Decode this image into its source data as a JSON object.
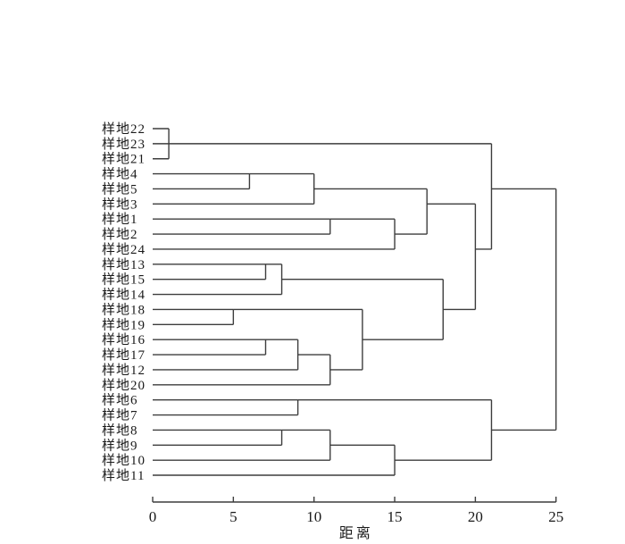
{
  "figure": {
    "kind": "hierarchical-clustering-dendrogram"
  },
  "colors": {
    "line": "#3d3d3d",
    "text": "#1a1a1a",
    "background": "#ffffff"
  },
  "chart_data": {
    "type": "table",
    "chart_kind": "dendrogram",
    "orientation": "horizontal-left-labels",
    "title": "",
    "xlabel": "距离",
    "ylabel": "",
    "xlim": [
      0,
      25
    ],
    "x_ticks": [
      0,
      5,
      10,
      15,
      20,
      25
    ],
    "grid": false,
    "leaves": [
      "样地22",
      "样地23",
      "样地21",
      "样地4",
      "样地5",
      "样地3",
      "样地1",
      "样地2",
      "样地24",
      "样地13",
      "样地15",
      "样地14",
      "样地18",
      "样地19",
      "样地16",
      "样地17",
      "样地12",
      "样地20",
      "样地6",
      "样地7",
      "样地8",
      "样地9",
      "样地10",
      "样地11"
    ],
    "merges_format": "[join_distance, upper_line_row, upper_line_start_distance, lower_line_row, lower_line_start_distance]; rows are 1-based positions in leaves[] top-to-bottom",
    "merges": [
      [
        1,
        1,
        0,
        2,
        0
      ],
      [
        1,
        2,
        1,
        3,
        0
      ],
      [
        6,
        4,
        0,
        5,
        0
      ],
      [
        10,
        4,
        6,
        6,
        0
      ],
      [
        11,
        7,
        0,
        8,
        0
      ],
      [
        15,
        7,
        11,
        9,
        0
      ],
      [
        17,
        5,
        10,
        8,
        15
      ],
      [
        7,
        10,
        0,
        11,
        0
      ],
      [
        8,
        10,
        7,
        12,
        0
      ],
      [
        5,
        13,
        0,
        14,
        0
      ],
      [
        7,
        15,
        0,
        16,
        0
      ],
      [
        9,
        15,
        7,
        17,
        0
      ],
      [
        11,
        16,
        9,
        18,
        0
      ],
      [
        13,
        13,
        5,
        17,
        11
      ],
      [
        18,
        11,
        8,
        15,
        13
      ],
      [
        20,
        6,
        17,
        13,
        18
      ],
      [
        21,
        2,
        1,
        9,
        20
      ],
      [
        9,
        19,
        0,
        20,
        0
      ],
      [
        8,
        21,
        0,
        22,
        0
      ],
      [
        11,
        21,
        8,
        23,
        0
      ],
      [
        15,
        22,
        11,
        24,
        0
      ],
      [
        21,
        19,
        9,
        23,
        15
      ],
      [
        25,
        5,
        21,
        21,
        21
      ]
    ]
  }
}
